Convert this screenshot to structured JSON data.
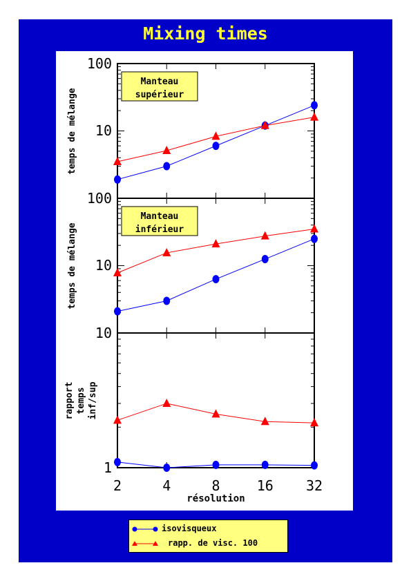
{
  "title": "Mixing times",
  "colors": {
    "frame": "#0000c8",
    "title": "#ffff33",
    "annotation_bg": "#ffff80",
    "series_iso": "#0000ff",
    "series_visc": "#ff0000"
  },
  "legend": {
    "items": [
      {
        "label": "isovisqueux",
        "color": "#0000ff",
        "marker": "circle"
      },
      {
        "label": "rapp. de visc. 100",
        "color": "#ff0000",
        "marker": "triangle"
      }
    ]
  },
  "chart_data": [
    {
      "type": "line",
      "panel": "top",
      "annotation": [
        "Manteau",
        "supérieur"
      ],
      "ylabel": "temps de mélange",
      "yscale": "log",
      "ylim": [
        1,
        100
      ],
      "y_ticks": [
        "100",
        "10"
      ],
      "x": [
        2,
        4,
        8,
        16,
        32
      ],
      "series": [
        {
          "name": "isovisqueux",
          "values": [
            1.9,
            3.0,
            6.0,
            12.0,
            24.0
          ]
        },
        {
          "name": "rapp. de visc. 100",
          "values": [
            3.5,
            5.1,
            8.3,
            12.0,
            16.0
          ]
        }
      ]
    },
    {
      "type": "line",
      "panel": "middle",
      "annotation": [
        "Manteau",
        "inférieur"
      ],
      "ylabel": "temps de mélange",
      "yscale": "log",
      "ylim": [
        1,
        100
      ],
      "y_ticks": [
        "100",
        "10",
        "10"
      ],
      "x": [
        2,
        4,
        8,
        16,
        32
      ],
      "series": [
        {
          "name": "isovisqueux",
          "values": [
            2.1,
            3.0,
            6.3,
            12.5,
            25.0
          ]
        },
        {
          "name": "rapp. de visc. 100",
          "values": [
            7.8,
            15.5,
            21.0,
            27.5,
            35.0
          ]
        }
      ]
    },
    {
      "type": "line",
      "panel": "bottom",
      "ylabel": [
        "rapport",
        "temps",
        "inf/sup"
      ],
      "yscale": "log",
      "ylim": [
        1,
        10
      ],
      "y_ticks": [
        "1"
      ],
      "xlabel": "résolution",
      "x": [
        2,
        4,
        8,
        16,
        32
      ],
      "x_tick_labels": [
        "2",
        "4",
        "8",
        "16",
        "32"
      ],
      "series": [
        {
          "name": "isovisqueux",
          "values": [
            1.1,
            1.0,
            1.05,
            1.05,
            1.04
          ]
        },
        {
          "name": "rapp. de visc. 100",
          "values": [
            2.25,
            3.0,
            2.5,
            2.2,
            2.15
          ]
        }
      ]
    }
  ]
}
